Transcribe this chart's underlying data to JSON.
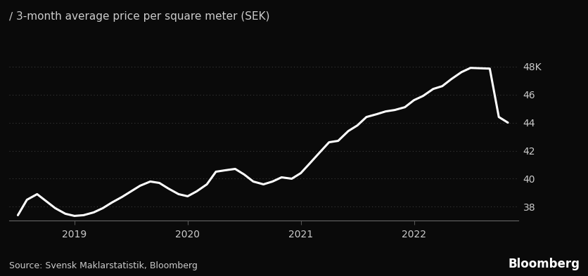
{
  "title": "∕ 3-month average price per square meter (SEK)",
  "source_text": "Source: Svensk Maklarstatistik, Bloomberg",
  "bloomberg_text": "Bloomberg",
  "background_color": "#0a0a0a",
  "line_color": "#ffffff",
  "text_color": "#cccccc",
  "grid_color": "#3a3a3a",
  "yticks": [
    38,
    40,
    42,
    44,
    46,
    48
  ],
  "ytick_labels": [
    "38",
    "40",
    "42",
    "44",
    "46",
    "48K"
  ],
  "ylim": [
    37.0,
    49.2
  ],
  "xlim_start": 2018.42,
  "xlim_end": 2022.92,
  "xtick_positions": [
    2019.0,
    2020.0,
    2021.0,
    2022.0
  ],
  "xtick_labels": [
    "2019",
    "2020",
    "2021",
    "2022"
  ],
  "x": [
    2018.5,
    2018.58,
    2018.67,
    2018.75,
    2018.83,
    2018.92,
    2019.0,
    2019.08,
    2019.17,
    2019.25,
    2019.33,
    2019.42,
    2019.5,
    2019.58,
    2019.67,
    2019.75,
    2019.83,
    2019.92,
    2020.0,
    2020.08,
    2020.17,
    2020.25,
    2020.33,
    2020.42,
    2020.5,
    2020.58,
    2020.67,
    2020.75,
    2020.83,
    2020.92,
    2021.0,
    2021.08,
    2021.17,
    2021.25,
    2021.33,
    2021.42,
    2021.5,
    2021.58,
    2021.67,
    2021.75,
    2021.83,
    2021.92,
    2022.0,
    2022.08,
    2022.17,
    2022.25,
    2022.33,
    2022.42,
    2022.5,
    2022.67,
    2022.75,
    2022.83
  ],
  "y": [
    37.4,
    38.5,
    38.9,
    38.4,
    37.9,
    37.5,
    37.35,
    37.4,
    37.6,
    37.9,
    38.3,
    38.7,
    39.1,
    39.5,
    39.8,
    39.7,
    39.3,
    38.9,
    38.75,
    39.1,
    39.6,
    40.5,
    40.6,
    40.7,
    40.3,
    39.8,
    39.6,
    39.8,
    40.1,
    40.0,
    40.4,
    41.1,
    41.9,
    42.6,
    42.7,
    43.4,
    43.8,
    44.4,
    44.6,
    44.8,
    44.9,
    45.1,
    45.6,
    45.9,
    46.4,
    46.6,
    47.1,
    47.6,
    47.9,
    47.85,
    44.4,
    44.0
  ],
  "line_width": 2.2,
  "title_fontsize": 11,
  "tick_fontsize": 10,
  "source_fontsize": 9,
  "bloomberg_fontsize": 12
}
